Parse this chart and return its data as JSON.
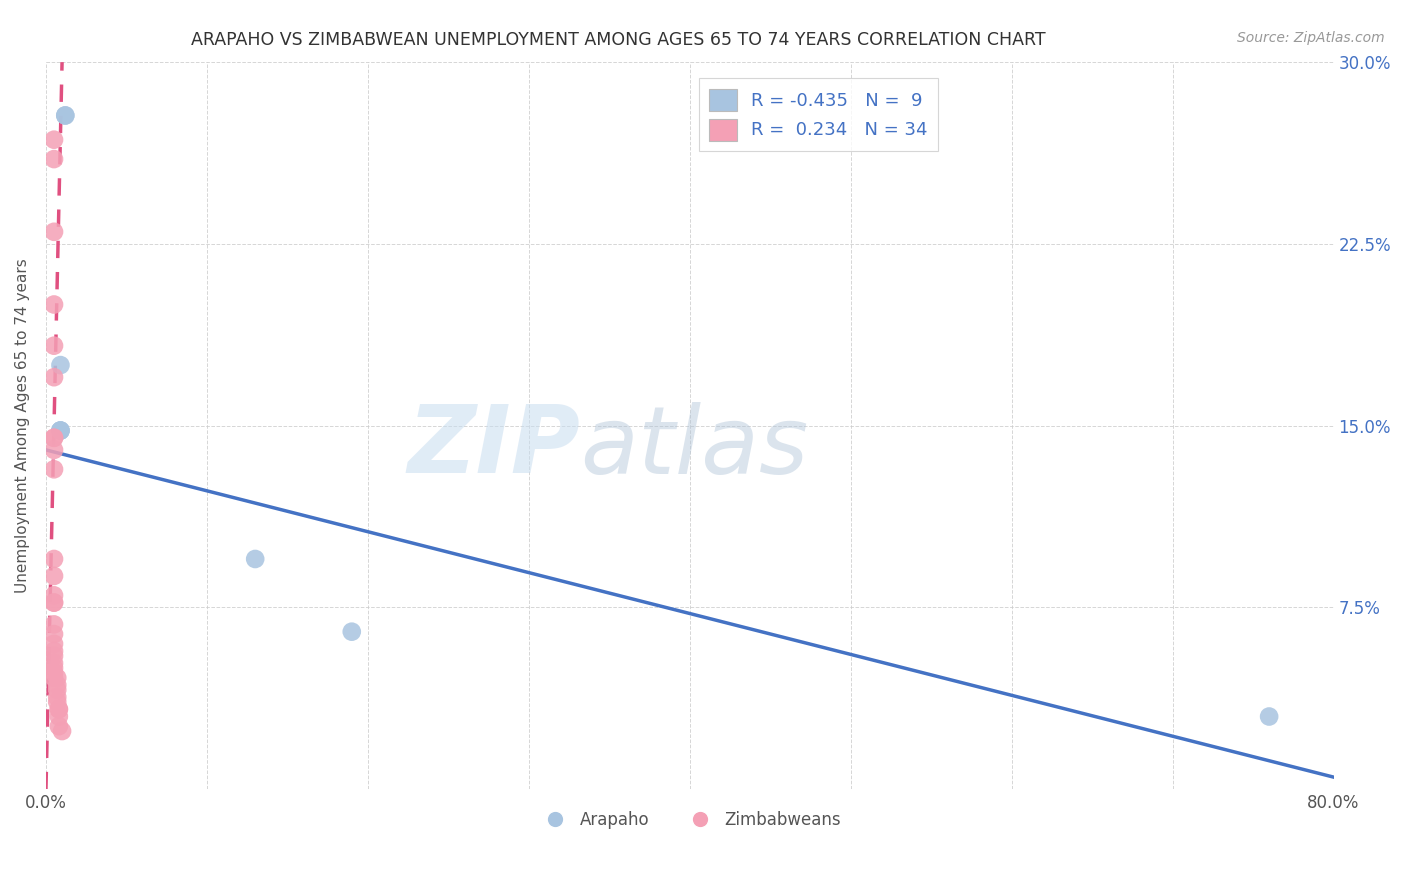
{
  "title": "ARAPAHO VS ZIMBABWEAN UNEMPLOYMENT AMONG AGES 65 TO 74 YEARS CORRELATION CHART",
  "source": "Source: ZipAtlas.com",
  "ylabel": "Unemployment Among Ages 65 to 74 years",
  "xlim": [
    0.0,
    0.8
  ],
  "ylim": [
    0.0,
    0.3
  ],
  "xticks": [
    0.0,
    0.1,
    0.2,
    0.3,
    0.4,
    0.5,
    0.6,
    0.7,
    0.8
  ],
  "xticklabels": [
    "0.0%",
    "",
    "",
    "",
    "",
    "",
    "",
    "",
    "80.0%"
  ],
  "yticks": [
    0.0,
    0.075,
    0.15,
    0.225,
    0.3
  ],
  "ytick_right_labels": [
    "",
    "7.5%",
    "15.0%",
    "22.5%",
    "30.0%"
  ],
  "arapaho_color": "#a8c4e0",
  "zimbabwean_color": "#f4a0b5",
  "trendline_arapaho_color": "#4472c4",
  "trendline_zimbabwean_color": "#e05080",
  "arapaho_R": -0.435,
  "arapaho_N": 9,
  "zimbabwean_R": 0.234,
  "zimbabwean_N": 34,
  "arapaho_x": [
    0.012,
    0.012,
    0.009,
    0.009,
    0.009,
    0.009,
    0.13,
    0.19,
    0.76
  ],
  "arapaho_y": [
    0.278,
    0.278,
    0.175,
    0.148,
    0.148,
    0.148,
    0.095,
    0.065,
    0.03
  ],
  "zimbabwean_x": [
    0.005,
    0.005,
    0.005,
    0.005,
    0.005,
    0.005,
    0.005,
    0.005,
    0.005,
    0.005,
    0.005,
    0.005,
    0.005,
    0.005,
    0.005,
    0.005,
    0.005,
    0.005,
    0.005,
    0.005,
    0.005,
    0.005,
    0.005,
    0.005,
    0.007,
    0.007,
    0.007,
    0.007,
    0.007,
    0.008,
    0.008,
    0.008,
    0.008,
    0.01
  ],
  "zimbabwean_y": [
    0.268,
    0.26,
    0.23,
    0.2,
    0.183,
    0.17,
    0.145,
    0.145,
    0.14,
    0.132,
    0.095,
    0.088,
    0.08,
    0.077,
    0.077,
    0.068,
    0.064,
    0.06,
    0.057,
    0.055,
    0.052,
    0.05,
    0.048,
    0.046,
    0.046,
    0.043,
    0.041,
    0.038,
    0.036,
    0.033,
    0.033,
    0.03,
    0.026,
    0.024
  ],
  "zim_trendline_x0": 0.0,
  "zim_trendline_y0": 0.0,
  "zim_trendline_x1": 0.01,
  "zim_trendline_y1": 0.3,
  "ara_trendline_x0": 0.0,
  "ara_trendline_y0": 0.14,
  "ara_trendline_x1": 0.8,
  "ara_trendline_y1": 0.005,
  "watermark_zip": "ZIP",
  "watermark_atlas": "atlas",
  "background_color": "#ffffff",
  "grid_color": "#cccccc",
  "legend_arapaho_facecolor": "#a8c4e0",
  "legend_zimbabwean_facecolor": "#f4a0b5",
  "legend_text_color": "#4472c4",
  "legend_label_arapaho": "R = -0.435   N =  9",
  "legend_label_zimbabwean": "R =  0.234   N = 34",
  "bottom_legend_arapaho": "Arapaho",
  "bottom_legend_zimbabwean": "Zimbabweans"
}
